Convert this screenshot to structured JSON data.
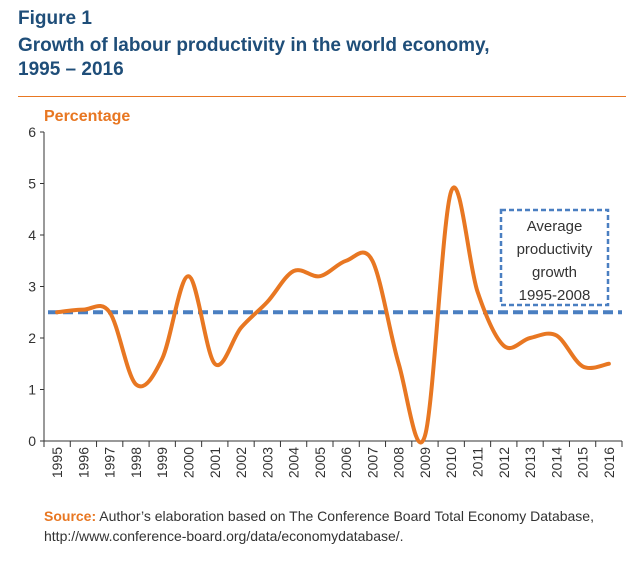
{
  "figure_label": "Figure 1",
  "title_line1": "Growth of labour productivity in the world economy,",
  "title_line2": "1995 – 2016",
  "source_label": "Source:",
  "source_text": " Author’s elaboration based on The Conference Board Total Economy Database, http://www.conference-board.org/data/economydatabase/.",
  "colors": {
    "accent": "#e87722",
    "title": "#1f4e79",
    "average": "#4a7fc1"
  },
  "chart_data": {
    "type": "line",
    "ylabel": "Percentage",
    "xlabel": "",
    "ylim": [
      0,
      6
    ],
    "yticks": [
      0,
      1,
      2,
      3,
      4,
      5,
      6
    ],
    "categories": [
      "1995",
      "1996",
      "1997",
      "1998",
      "1999",
      "2000",
      "2001",
      "2002",
      "2003",
      "2004",
      "2005",
      "2006",
      "2007",
      "2008",
      "2009",
      "2010",
      "2011",
      "2012",
      "2013",
      "2014",
      "2015",
      "2016"
    ],
    "series": [
      {
        "values": [
          2.5,
          2.55,
          2.5,
          1.1,
          1.6,
          3.2,
          1.5,
          2.2,
          2.7,
          3.3,
          3.2,
          3.5,
          3.5,
          1.5,
          0.1,
          4.85,
          2.9,
          1.85,
          2.0,
          2.05,
          1.45,
          1.5
        ]
      }
    ],
    "reference_line": {
      "value": 2.5,
      "annotation": [
        "Average",
        "productivity",
        "growth",
        "1995-2008"
      ]
    },
    "grid": false
  }
}
